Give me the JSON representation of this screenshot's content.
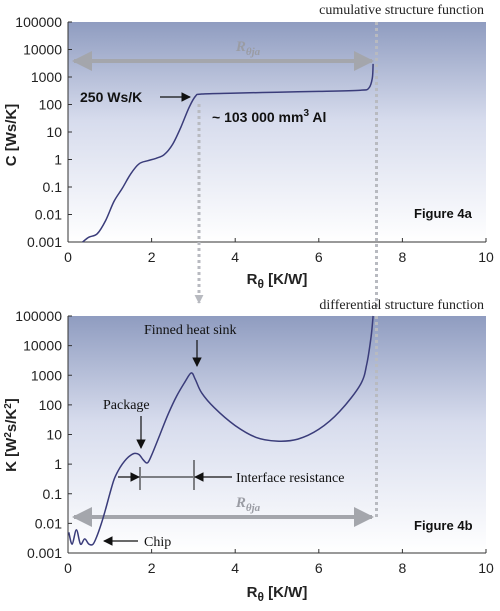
{
  "chart_data": [
    {
      "type": "line",
      "title": "cumulative structure function",
      "figure_label": "Figure 4a",
      "xlabel_main": "R",
      "xlabel_sub": "θ",
      "xlabel_unit": " [K/W]",
      "ylabel": "C [Ws/K]",
      "xlim": [
        0,
        10
      ],
      "ylim": [
        0.001,
        100000
      ],
      "yscale": "log",
      "x_ticks": [
        "0",
        "2",
        "4",
        "6",
        "8",
        "10"
      ],
      "y_ticks": [
        "0.001",
        "0.01",
        "0.1",
        "1",
        "10",
        "100",
        "1000",
        "10000",
        "100000"
      ],
      "grid": false,
      "series": [
        {
          "x": [
            0.35,
            0.5,
            0.7,
            0.9,
            1.1,
            1.3,
            1.5,
            1.7,
            1.9,
            2.1,
            2.3,
            2.5,
            2.7,
            2.9,
            3.05,
            3.2,
            4.0,
            5.0,
            6.0,
            7.0,
            7.2,
            7.28,
            7.3
          ],
          "y": [
            0.001,
            0.0015,
            0.002,
            0.006,
            0.03,
            0.09,
            0.3,
            0.7,
            0.9,
            1.1,
            1.5,
            3.5,
            15,
            80,
            200,
            240,
            260,
            280,
            300,
            330,
            400,
            900,
            3000
          ]
        }
      ],
      "annotations": {
        "capacity": "250 Ws/K",
        "volume_prefix": "~ 103 000 mm",
        "volume_sup": "3",
        "volume_suffix": " Al",
        "r_main": "R",
        "r_sub": "θja"
      }
    },
    {
      "type": "line",
      "title": "differential structure function",
      "figure_label": "Figure 4b",
      "xlabel_main": "R",
      "xlabel_sub": "θ",
      "xlabel_unit": " [K/W]",
      "ylabel_prefix": "K [W",
      "ylabel_sup1": "2",
      "ylabel_mid": "s/K",
      "ylabel_sup2": "2",
      "ylabel_suffix": "]",
      "xlim": [
        0,
        10
      ],
      "ylim": [
        0.001,
        100000
      ],
      "yscale": "log",
      "x_ticks": [
        "0",
        "2",
        "4",
        "6",
        "8",
        "10"
      ],
      "y_ticks": [
        "0.001",
        "0.01",
        "0.1",
        "1",
        "10",
        "100",
        "1000",
        "10000",
        "100000"
      ],
      "grid": false,
      "series": [
        {
          "x": [
            0.02,
            0.1,
            0.2,
            0.3,
            0.4,
            0.5,
            0.6,
            0.7,
            0.8,
            0.9,
            1.0,
            1.1,
            1.2,
            1.3,
            1.4,
            1.5,
            1.6,
            1.7,
            1.8,
            1.9,
            2.0,
            2.2,
            2.4,
            2.6,
            2.8,
            2.95,
            3.05,
            3.2,
            3.5,
            4.0,
            4.5,
            5.0,
            5.5,
            6.0,
            6.5,
            7.0,
            7.15,
            7.25,
            7.3
          ],
          "y": [
            0.005,
            0.002,
            0.006,
            0.002,
            0.003,
            0.002,
            0.002,
            0.004,
            0.01,
            0.03,
            0.1,
            0.3,
            0.6,
            1.0,
            1.5,
            2.0,
            2.3,
            2.1,
            1.4,
            1.1,
            2.0,
            10,
            50,
            200,
            600,
            1200,
            700,
            250,
            80,
            20,
            8,
            6,
            7,
            15,
            60,
            500,
            2500,
            20000,
            100000
          ]
        }
      ],
      "annotations": {
        "heat_sink": "Finned heat sink",
        "package": "Package",
        "interface": "Interface resistance",
        "chip": "Chip",
        "r_main": "R",
        "r_sub": "θja"
      }
    }
  ]
}
